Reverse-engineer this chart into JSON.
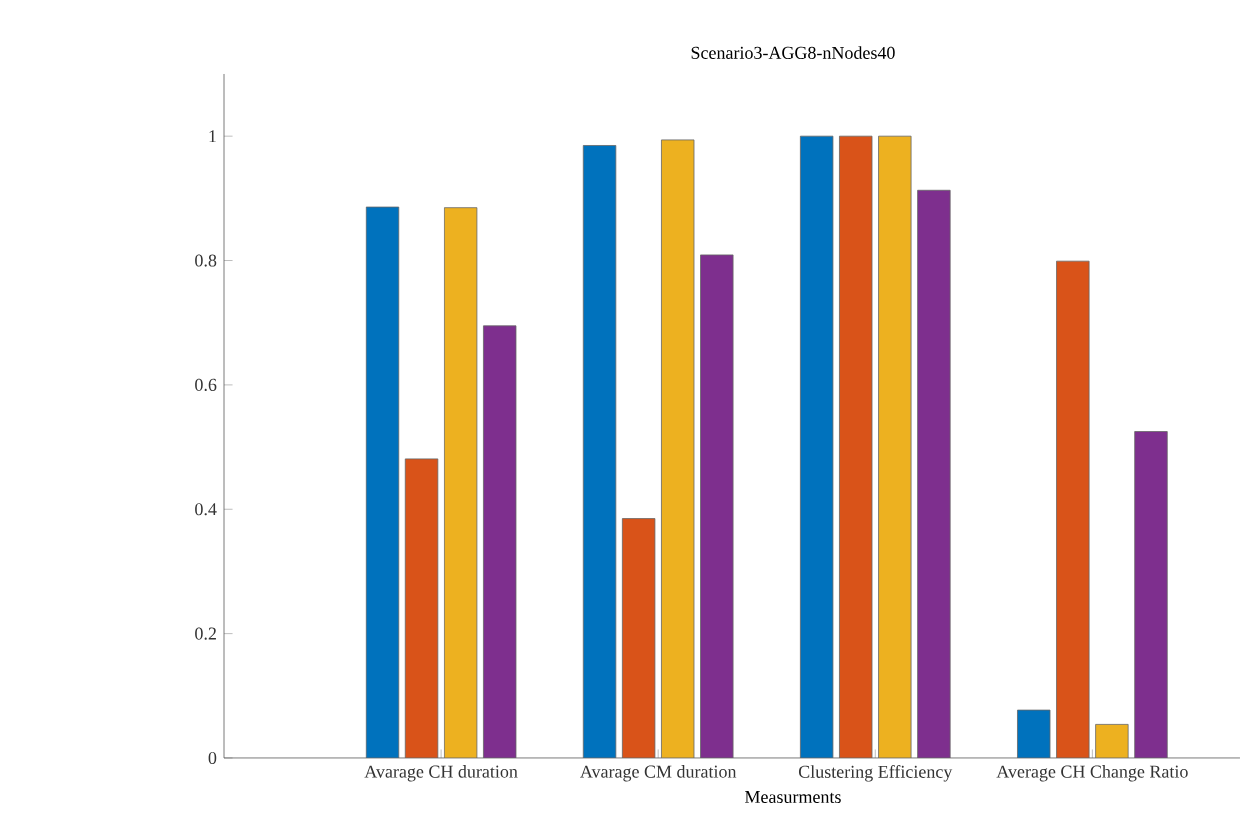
{
  "chart_data": {
    "type": "bar",
    "title": "Scenario3-AGG8-nNodes40",
    "xlabel": "Measurments",
    "categories": [
      "Avarage CH duration",
      "Avarage CM duration",
      "Clustering Efficiency",
      "Average CH Change Ratio"
    ],
    "series": [
      {
        "color": "#0072bd",
        "values": [
          0.886,
          0.985,
          1.0,
          0.077
        ]
      },
      {
        "color": "#d95319",
        "values": [
          0.481,
          0.385,
          1.0,
          0.799
        ]
      },
      {
        "color": "#edb120",
        "values": [
          0.885,
          0.994,
          1.0,
          0.054
        ]
      },
      {
        "color": "#7e2f8e",
        "values": [
          0.695,
          0.809,
          0.913,
          0.525
        ]
      }
    ],
    "ylim": [
      0,
      1.1
    ],
    "yticks": [
      0,
      0.2,
      0.4,
      0.6,
      0.8,
      1
    ],
    "grid": false
  }
}
